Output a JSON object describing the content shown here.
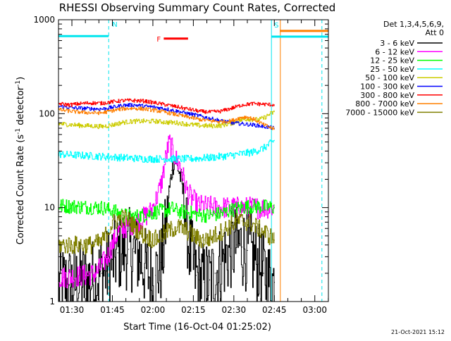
{
  "chart_data": {
    "type": "line",
    "title": "RHESSI Observing Summary Count Rates, Corrected",
    "xlabel": "Start Time (16-Oct-04 01:25:02)",
    "ylabel": "Corrected Count Rate (s",
    "ylabel_sup1": "-1",
    "ylabel_mid": " detector",
    "ylabel_sup2": "-1",
    "ylabel_end": ")",
    "yscale": "log",
    "ylim": [
      1,
      1000
    ],
    "xlim_minutes": [
      0,
      100
    ],
    "x_ticks": [
      {
        "label": "01:30",
        "minute": 4.97
      },
      {
        "label": "01:45",
        "minute": 19.97
      },
      {
        "label": "02:00",
        "minute": 34.97
      },
      {
        "label": "02:15",
        "minute": 49.97
      },
      {
        "label": "02:30",
        "minute": 64.97
      },
      {
        "label": "02:45",
        "minute": 79.97
      },
      {
        "label": "03:00",
        "minute": 94.97
      }
    ],
    "y_ticks": [
      {
        "label": "1",
        "value": 1
      },
      {
        "label": "10",
        "value": 10
      },
      {
        "label": "100",
        "value": 100
      },
      {
        "label": "1000",
        "value": 1000
      }
    ],
    "grid": false,
    "legend_header": [
      "Det 1,3,4,5,6,9,",
      "Att 0"
    ],
    "legend_placement": "right",
    "timestamp": "21-Oct-2021 15:12",
    "flags": [
      {
        "label": "N",
        "start": 0,
        "end": 18.6,
        "level": 670,
        "color": "#00e5ee",
        "kind": "bar"
      },
      {
        "label": "F",
        "start": 39,
        "end": 48,
        "level": 630,
        "color": "#ff0000",
        "kind": "bar"
      },
      {
        "label": "S",
        "start": 78.9,
        "end": 100,
        "level": 660,
        "color": "#00e5ee",
        "kind": "bar"
      },
      {
        "label": "",
        "start": 82,
        "end": 100,
        "level": 760,
        "color": "#ff7f00",
        "kind": "bar"
      }
    ],
    "vlines": [
      {
        "minute": 18.6,
        "color": "#00e5ee",
        "dashed": true
      },
      {
        "minute": 78.9,
        "color": "#00e5ee",
        "dashed": false
      },
      {
        "minute": 82.2,
        "color": "#ff7f00",
        "dashed": false
      },
      {
        "minute": 97.6,
        "color": "#00e5ee",
        "dashed": true
      }
    ],
    "series": [
      {
        "name": "3 - 6 keV",
        "color": "#000000",
        "x": [
          0,
          4,
          8,
          12,
          14,
          16,
          18,
          20,
          22,
          24,
          26,
          28,
          30,
          32,
          34,
          36,
          38,
          39,
          40,
          41,
          42,
          43,
          44,
          45,
          46,
          47,
          48,
          49,
          50,
          51,
          52,
          54,
          56,
          58,
          60,
          62,
          64,
          66,
          68,
          70,
          72,
          74,
          76,
          78,
          80
        ],
        "y": [
          1.5,
          1.5,
          1.6,
          1.7,
          1.8,
          2.0,
          2.2,
          2.8,
          3.3,
          3.7,
          3.6,
          3.4,
          3.0,
          2.3,
          1.8,
          1.9,
          2.6,
          4.0,
          8.0,
          15,
          25,
          33,
          28,
          22,
          15,
          8,
          4.5,
          3.0,
          2.3,
          1.9,
          1.7,
          1.6,
          1.7,
          2.0,
          2.5,
          3.0,
          3.7,
          4.0,
          3.8,
          3.5,
          3.0,
          2.5,
          2.0,
          1.7,
          1.6
        ]
      },
      {
        "name": "6 - 12 keV",
        "color": "#ff00ff",
        "x": [
          0,
          10,
          14,
          18,
          22,
          26,
          30,
          34,
          36,
          38,
          39,
          40,
          41,
          42,
          43,
          44,
          45,
          46,
          47,
          48,
          49,
          50,
          51,
          52,
          56,
          60,
          64,
          68,
          72,
          76,
          80
        ],
        "y": [
          1.8,
          1.9,
          2.0,
          3.0,
          5.5,
          6.5,
          7.2,
          9.0,
          12,
          18,
          26,
          38,
          50,
          42,
          35,
          30,
          28,
          22,
          17,
          14,
          13,
          12,
          11,
          10.5,
          10.2,
          10,
          10,
          10,
          10,
          10,
          10
        ]
      },
      {
        "name": "12 - 25 keV",
        "color": "#00ff00",
        "x": [
          0,
          8,
          16,
          20,
          24,
          28,
          32,
          36,
          40,
          42,
          44,
          46,
          48,
          50,
          52,
          56,
          60,
          64,
          68,
          72,
          76,
          80
        ],
        "y": [
          10.5,
          10.2,
          10.0,
          9.3,
          8.3,
          8.0,
          8.4,
          9.0,
          9.4,
          9.8,
          9.2,
          9.0,
          8.9,
          8.6,
          8.3,
          8.3,
          8.6,
          9.4,
          10.1,
          10.3,
          10.2,
          10
        ]
      },
      {
        "name": "25 - 50 keV",
        "color": "#00ffff",
        "x": [
          0,
          8,
          16,
          24,
          32,
          40,
          48,
          56,
          64,
          72,
          76,
          80
        ],
        "y": [
          37,
          36,
          35,
          34,
          33,
          33,
          33,
          34,
          36,
          39,
          43,
          52
        ]
      },
      {
        "name": "50 - 100 keV",
        "color": "#cccc00",
        "x": [
          0,
          8,
          16,
          20,
          24,
          28,
          32,
          36,
          40,
          44,
          48,
          52,
          56,
          60,
          64,
          66,
          68,
          70,
          72,
          74,
          76,
          78,
          80
        ],
        "y": [
          78,
          75,
          73,
          76,
          81,
          83,
          83,
          83,
          81,
          80,
          77,
          75,
          74,
          75,
          79,
          83,
          86,
          88,
          87,
          86,
          90,
          98,
          105
        ]
      },
      {
        "name": "100 - 300 keV",
        "color": "#0000ff",
        "x": [
          0,
          6,
          12,
          16,
          20,
          24,
          28,
          32,
          36,
          40,
          44,
          48,
          52,
          56,
          60,
          64,
          68,
          72,
          76,
          80
        ],
        "y": [
          120,
          115,
          113,
          112,
          117,
          123,
          124,
          120,
          117,
          112,
          106,
          100,
          95,
          89,
          84,
          80,
          78,
          76,
          73,
          70
        ]
      },
      {
        "name": "300 - 800 keV",
        "color": "#ff0000",
        "x": [
          0,
          4,
          8,
          12,
          16,
          20,
          24,
          28,
          32,
          36,
          40,
          44,
          48,
          52,
          56,
          60,
          64,
          68,
          72,
          76,
          80
        ],
        "y": [
          128,
          124,
          128,
          130,
          129,
          134,
          138,
          138,
          136,
          130,
          124,
          118,
          112,
          106,
          104,
          106,
          114,
          124,
          128,
          126,
          124
        ]
      },
      {
        "name": "800 - 7000 keV",
        "color": "#ff7f00",
        "x": [
          0,
          6,
          12,
          16,
          20,
          24,
          28,
          32,
          36,
          40,
          44,
          48,
          52,
          56,
          60,
          64,
          66,
          68,
          70,
          72,
          74,
          76,
          78,
          80
        ],
        "y": [
          110,
          105,
          102,
          102,
          108,
          113,
          114,
          112,
          108,
          103,
          97,
          92,
          87,
          84,
          82,
          84,
          88,
          92,
          92,
          88,
          82,
          76,
          72,
          68
        ]
      },
      {
        "name": "7000 - 15000 keV",
        "color": "#808000",
        "x": [
          0,
          8,
          12,
          16,
          18,
          20,
          22,
          24,
          26,
          28,
          30,
          32,
          34,
          36,
          38,
          40,
          42,
          44,
          46,
          48,
          50,
          52,
          54,
          56,
          58,
          60,
          62,
          64,
          66,
          68,
          70,
          72,
          74,
          76,
          80
        ],
        "y": [
          4.0,
          4.0,
          4.0,
          4.3,
          5.5,
          6.8,
          7.5,
          7.8,
          7.3,
          6.3,
          5.5,
          5.0,
          4.7,
          4.6,
          5.0,
          5.5,
          5.9,
          6.2,
          6.0,
          5.5,
          5.0,
          4.6,
          4.5,
          4.7,
          5.1,
          5.5,
          6.0,
          6.6,
          7.1,
          7.2,
          7.0,
          6.6,
          6.0,
          5.6,
          4.5
        ]
      }
    ]
  }
}
